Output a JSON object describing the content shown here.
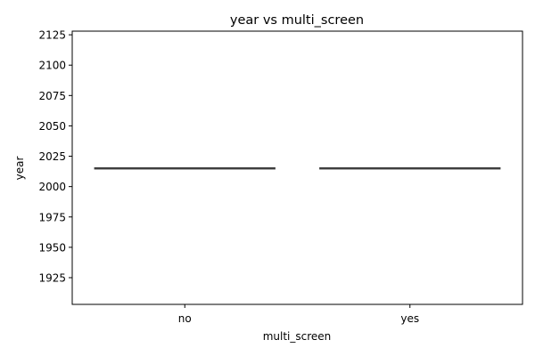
{
  "chart_data": {
    "type": "box",
    "title": "year vs multi_screen",
    "xlabel": "multi_screen",
    "ylabel": "year",
    "categories": [
      "no",
      "yes"
    ],
    "ylim": [
      1903,
      2128
    ],
    "yticks": [
      1925,
      1950,
      1975,
      2000,
      2025,
      2050,
      2075,
      2100,
      2125
    ],
    "grid": false,
    "boxes": [
      {
        "category": "no",
        "min": 2015,
        "q1": 2015,
        "median": 2015,
        "q3": 2015,
        "max": 2015
      },
      {
        "category": "yes",
        "min": 2015,
        "q1": 2015,
        "median": 2015,
        "q3": 2015,
        "max": 2015
      }
    ],
    "colors": {
      "box_line": "#3f3f3f",
      "axis": "#000000"
    }
  }
}
